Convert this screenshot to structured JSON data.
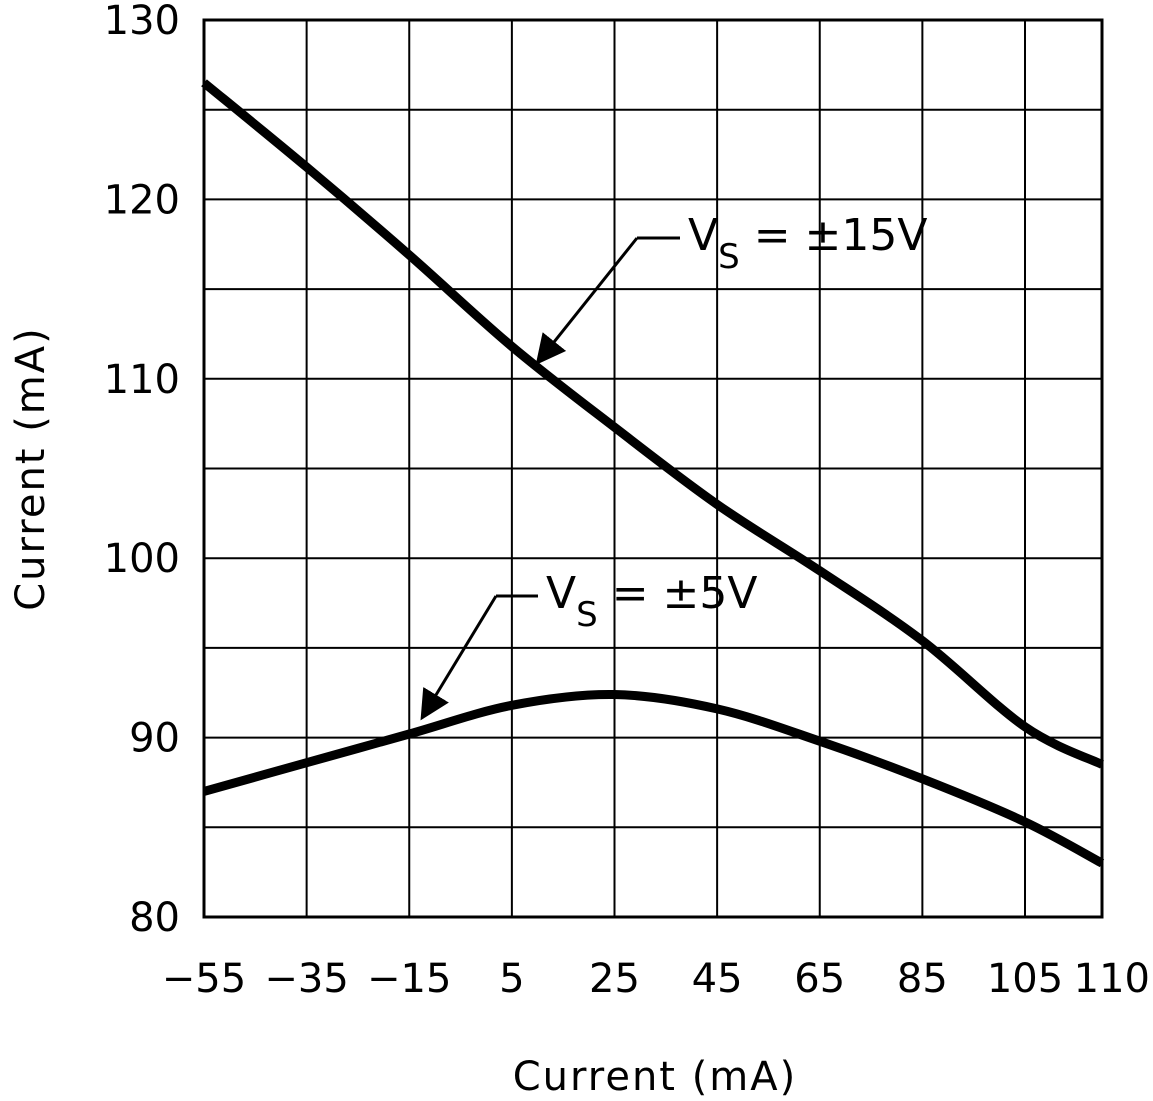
{
  "chart_data": {
    "type": "line",
    "title": "",
    "xlabel": "Current (mA)",
    "ylabel": "Current (mA)",
    "x_ticks": [
      "-55",
      "-35",
      "-15",
      "5",
      "25",
      "45",
      "65",
      "85",
      "105",
      "110"
    ],
    "y_ticks": [
      "80",
      "90",
      "100",
      "110",
      "120",
      "130"
    ],
    "xlim": [
      -55,
      110
    ],
    "ylim": [
      80,
      130
    ],
    "grid": true,
    "series": [
      {
        "name": "V_S = ±15V",
        "x": [
          -55,
          -35,
          -15,
          5,
          25,
          45,
          65,
          85,
          105,
          110
        ],
        "y": [
          126.5,
          121.8,
          116.9,
          111.8,
          107.3,
          103.0,
          99.3,
          95.4,
          90.6,
          88.5
        ]
      },
      {
        "name": "V_S = ±5V",
        "x": [
          -55,
          -35,
          -15,
          5,
          25,
          45,
          65,
          85,
          105,
          110
        ],
        "y": [
          87.0,
          88.6,
          90.2,
          91.8,
          92.4,
          91.6,
          89.8,
          87.7,
          85.3,
          83.0
        ]
      }
    ],
    "annotations": [
      {
        "main": "V",
        "sub": "S",
        "rest": "= ±15V",
        "series": 0
      },
      {
        "main": "V",
        "sub": "S",
        "rest": "= ±5V",
        "series": 1
      }
    ]
  }
}
